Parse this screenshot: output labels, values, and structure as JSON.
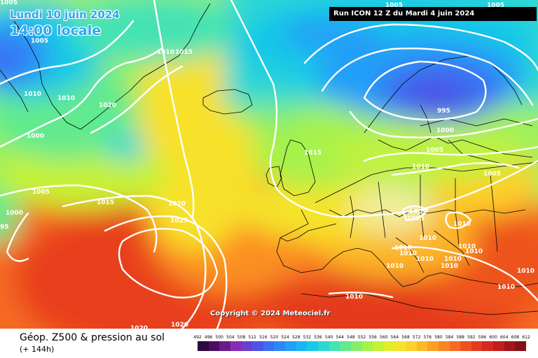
{
  "header": {
    "date": "Lundi 10 juin 2024",
    "time": "14:00 locale",
    "run": "Run ICON 12 Z du Mardi 4 juin 2024"
  },
  "copyright": "Copyright © 2024 Meteociel.fr",
  "footer": {
    "title": "Géop. Z500 & pression au sol",
    "subtitle": "(+ 144h)"
  },
  "legend": {
    "ticks": [
      "492",
      "496",
      "500",
      "504",
      "508",
      "512",
      "516",
      "520",
      "524",
      "528",
      "532",
      "536",
      "540",
      "544",
      "548",
      "552",
      "556",
      "560",
      "564",
      "568",
      "572",
      "576",
      "580",
      "584",
      "588",
      "592",
      "596",
      "600",
      "604",
      "608",
      "612"
    ],
    "colors": [
      "#2b0a3d",
      "#4a0f63",
      "#6a1a8a",
      "#8a2bb5",
      "#6a3fd0",
      "#4b55e6",
      "#3b6ef2",
      "#2f86f7",
      "#239ff8",
      "#17b6f4",
      "#19c9e6",
      "#2dd8d3",
      "#45e3b3",
      "#62ea8e",
      "#85ef6a",
      "#a6f24c",
      "#c6f235",
      "#e2ee2a",
      "#f6e329",
      "#fdd02a",
      "#feb928",
      "#fe9f25",
      "#fb8522",
      "#f56a20",
      "#ee521f",
      "#e43b1f",
      "#d52a1f",
      "#c01d1d",
      "#a3141b",
      "#841016"
    ]
  },
  "map": {
    "isobar_labels": [
      {
        "text": "1005"
      },
      {
        "text": "1005"
      },
      {
        "text": "1005"
      },
      {
        "text": "1010"
      },
      {
        "text": "1010"
      },
      {
        "text": "1010"
      },
      {
        "text": "1015"
      },
      {
        "text": "1020"
      },
      {
        "text": "1000"
      },
      {
        "text": "1005"
      },
      {
        "text": "1015"
      },
      {
        "text": "1020"
      },
      {
        "text": "1025"
      },
      {
        "text": "1000"
      },
      {
        "text": "95"
      },
      {
        "text": "1020"
      },
      {
        "text": "1020"
      },
      {
        "text": "1015"
      },
      {
        "text": "995"
      },
      {
        "text": "1000"
      },
      {
        "text": "1005"
      },
      {
        "text": "1010"
      },
      {
        "text": "1005"
      },
      {
        "text": "1005"
      },
      {
        "text": "1005"
      },
      {
        "text": "1010"
      },
      {
        "text": "1010"
      },
      {
        "text": "1010"
      },
      {
        "text": "1010"
      },
      {
        "text": "1010"
      },
      {
        "text": "1010"
      },
      {
        "text": "1010"
      },
      {
        "text": "1010"
      },
      {
        "text": "1010"
      },
      {
        "text": "1010"
      },
      {
        "text": "1010"
      },
      {
        "text": "1010"
      },
      {
        "text": "1010"
      },
      {
        "text": "1005"
      }
    ]
  }
}
